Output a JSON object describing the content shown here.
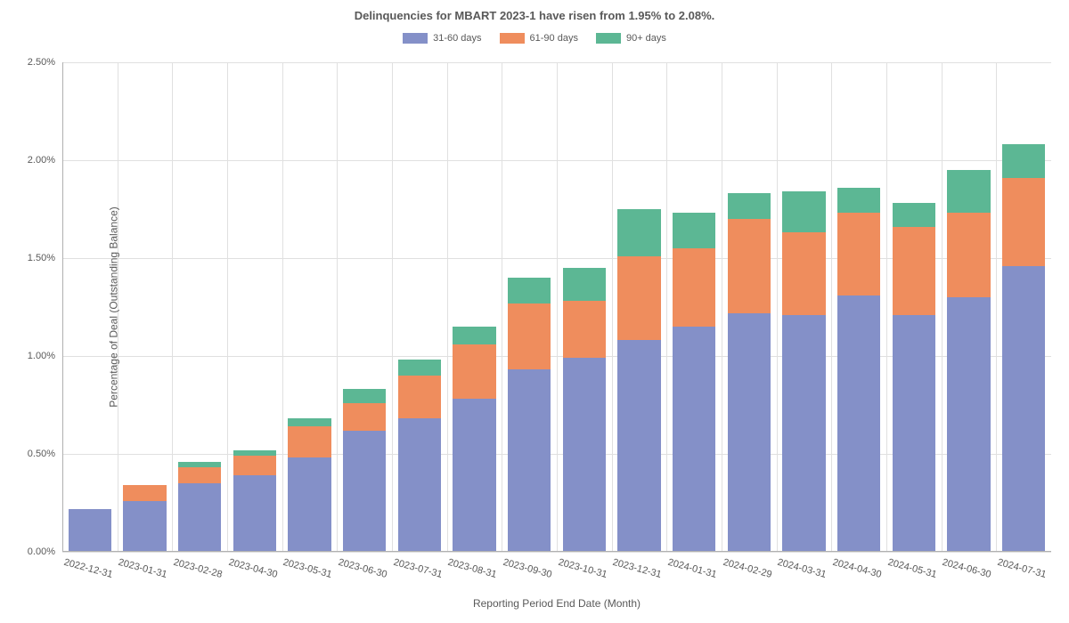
{
  "chart": {
    "type": "stacked-bar",
    "title": "Delinquencies for MBART 2023-1 have risen from 1.95% to 2.08%.",
    "title_fontsize": 13,
    "x_label": "Reporting Period End Date (Month)",
    "y_label": "Percentage of Deal (Outstanding Balance)",
    "axis_label_fontsize": 12,
    "tick_fontsize": 11,
    "legend_fontsize": 11,
    "background_color": "#ffffff",
    "grid_color": "#e0e0e0",
    "axis_color": "#b0b0b0",
    "text_color": "#595959",
    "series": [
      {
        "name": "31-60 days",
        "color": "#8490c8"
      },
      {
        "name": "61-90 days",
        "color": "#ef8d5d"
      },
      {
        "name": "90+ days",
        "color": "#5cb794"
      }
    ],
    "categories": [
      "2022-12-31",
      "2023-01-31",
      "2023-02-28",
      "2023-04-30",
      "2023-05-31",
      "2023-06-30",
      "2023-07-31",
      "2023-08-31",
      "2023-09-30",
      "2023-10-31",
      "2023-12-31",
      "2024-01-31",
      "2024-02-29",
      "2024-03-31",
      "2024-04-30",
      "2024-05-31",
      "2024-06-30",
      "2024-07-31"
    ],
    "values": {
      "31-60 days": [
        0.22,
        0.26,
        0.35,
        0.39,
        0.48,
        0.62,
        0.68,
        0.78,
        0.93,
        0.99,
        1.08,
        1.15,
        1.22,
        1.21,
        1.31,
        1.21,
        1.3,
        1.46
      ],
      "61-90 days": [
        0.0,
        0.08,
        0.08,
        0.1,
        0.16,
        0.14,
        0.22,
        0.28,
        0.34,
        0.29,
        0.43,
        0.4,
        0.48,
        0.42,
        0.42,
        0.45,
        0.43,
        0.45
      ],
      "90+ days": [
        0.0,
        0.0,
        0.03,
        0.03,
        0.04,
        0.07,
        0.08,
        0.09,
        0.13,
        0.17,
        0.24,
        0.18,
        0.13,
        0.21,
        0.13,
        0.12,
        0.22,
        0.17
      ]
    },
    "ylim": [
      0,
      2.5
    ],
    "ytick_step": 0.5,
    "bar_width": 0.78
  }
}
